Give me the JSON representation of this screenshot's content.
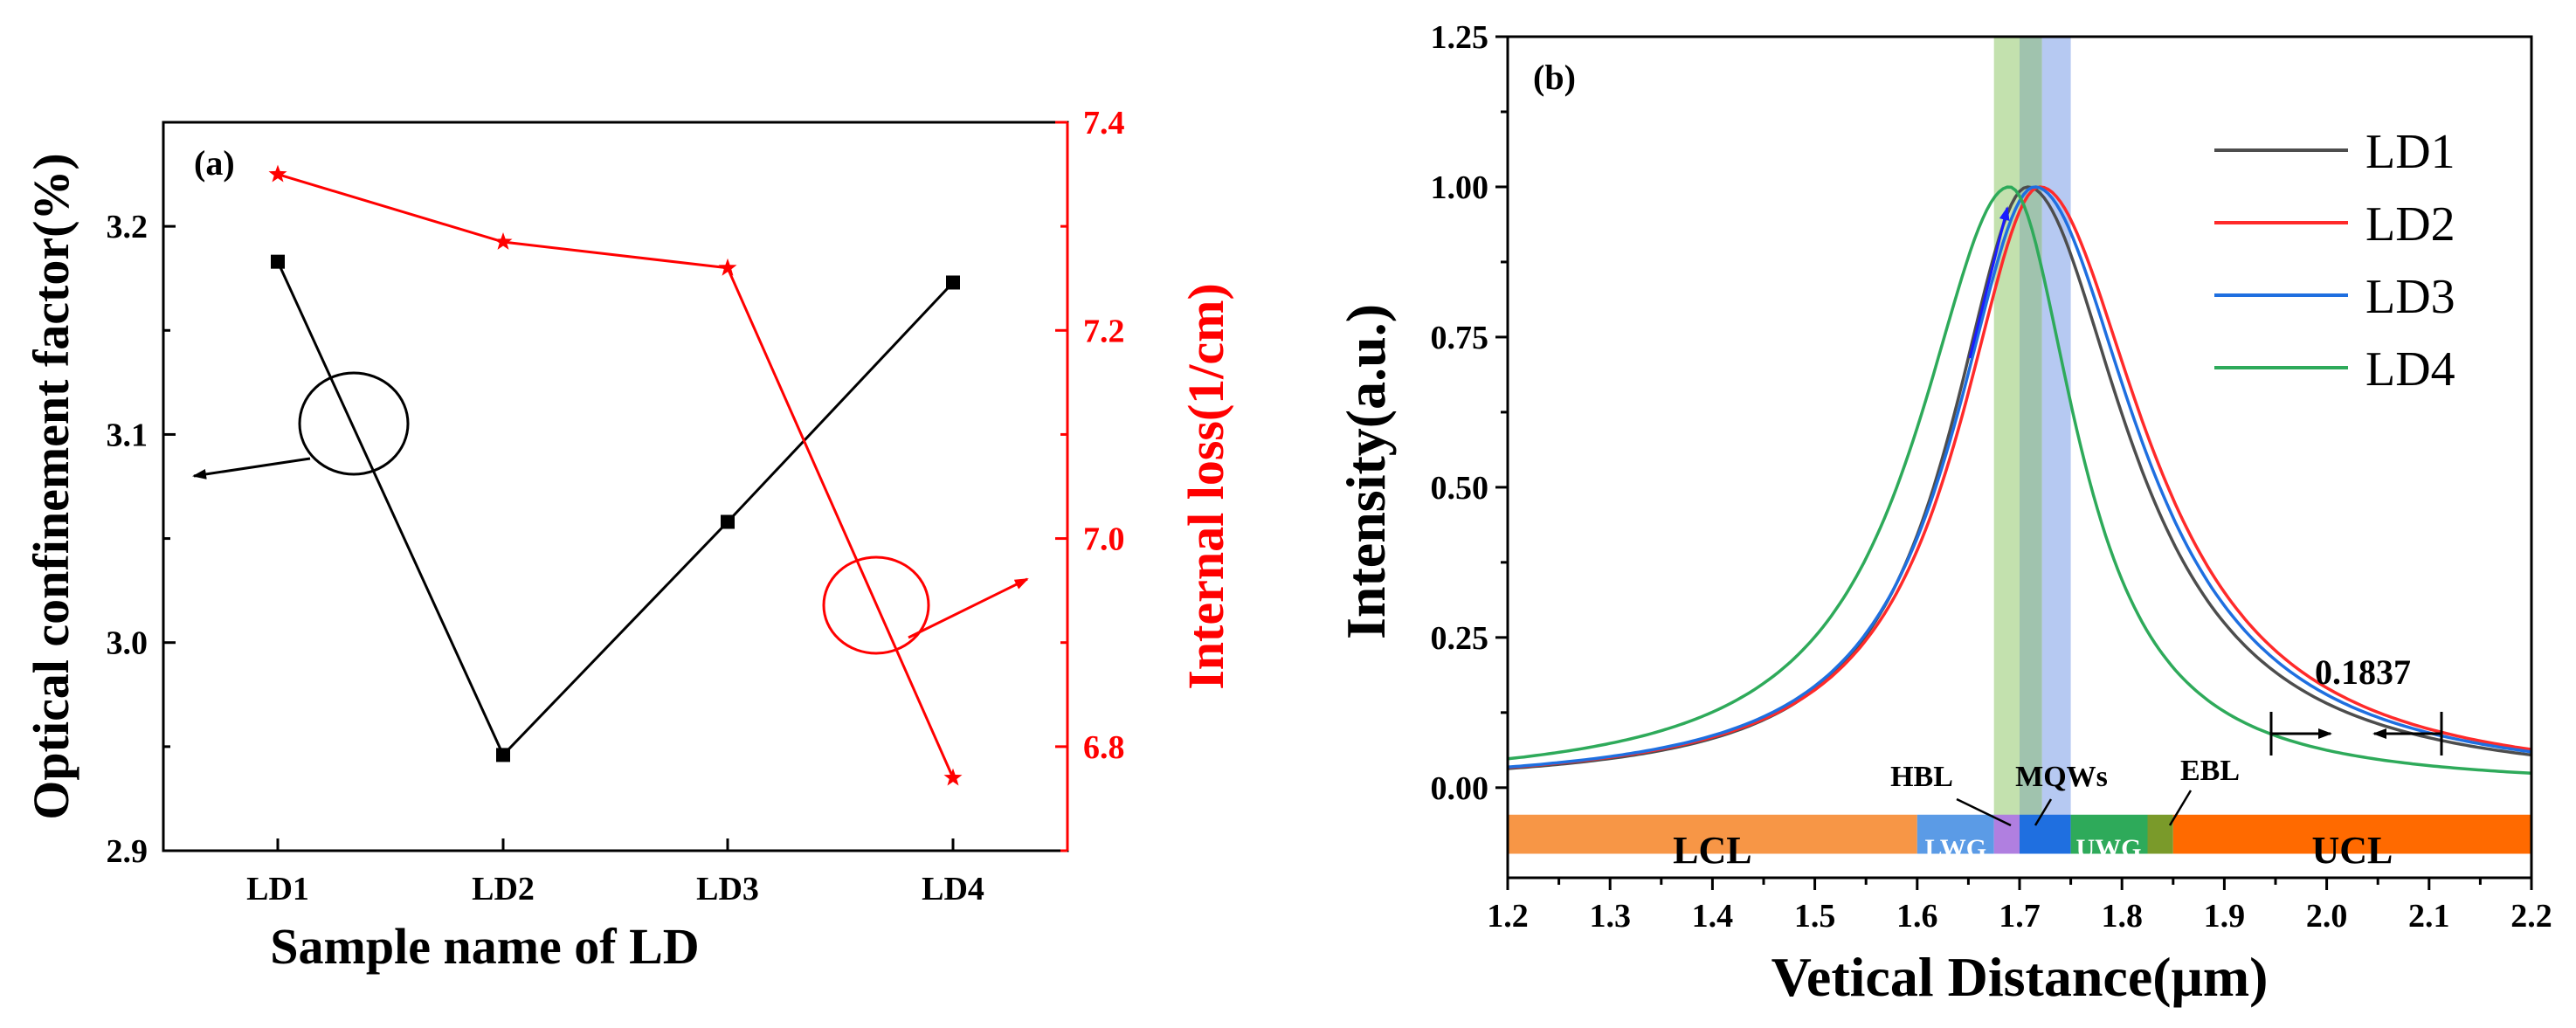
{
  "chart_data": [
    {
      "type": "line",
      "panel_label": "(a)",
      "categories": [
        "LD1",
        "LD2",
        "LD3",
        "LD4"
      ],
      "xlabel": "Sample name of LD",
      "ylabel_left": "Optical confinement factor(%)",
      "ylabel_right": "Internal loss(1/cm)",
      "ylim_left": [
        2.9,
        3.25
      ],
      "yticks_left": [
        "2.9",
        "3.0",
        "3.1",
        "3.2"
      ],
      "ylim_right": [
        6.7,
        7.4
      ],
      "yticks_right": [
        "6.8",
        "7.0",
        "7.2",
        "7.4"
      ],
      "series": [
        {
          "name": "Optical confinement factor",
          "axis": "left",
          "color": "#000000",
          "marker": "square",
          "values": [
            3.183,
            2.946,
            3.058,
            3.173
          ]
        },
        {
          "name": "Internal loss",
          "axis": "right",
          "color": "#ff0000",
          "marker": "star",
          "values": [
            7.35,
            7.285,
            7.26,
            6.77
          ]
        }
      ]
    },
    {
      "type": "line",
      "panel_label": "(b)",
      "xlabel": "Vetical Distance(μm)",
      "ylabel": "Intensity(a.u.)",
      "xlim": [
        1.2,
        2.2
      ],
      "ylim": [
        -0.15,
        1.25
      ],
      "xticks": [
        "1.2",
        "1.3",
        "1.4",
        "1.5",
        "1.6",
        "1.7",
        "1.8",
        "1.9",
        "2.0",
        "2.1",
        "2.2"
      ],
      "yticks": [
        "0.00",
        "0.25",
        "0.50",
        "0.75",
        "1.00",
        "1.25"
      ],
      "legend_position": "top-right",
      "series": [
        {
          "name": "LD1",
          "color": "#4d4d4d",
          "peak": 1.708,
          "left_width": 0.092,
          "right_width": 0.118
        },
        {
          "name": "LD2",
          "color": "#ff2a2a",
          "peak": 1.72,
          "left_width": 0.097,
          "right_width": 0.125
        },
        {
          "name": "LD3",
          "color": "#1f6fe0",
          "peak": 1.715,
          "left_width": 0.097,
          "right_width": 0.122
        },
        {
          "name": "LD4",
          "color": "#2eaa5a",
          "peak": 1.69,
          "left_width": 0.11,
          "right_width": 0.08
        }
      ],
      "layers": [
        {
          "name": "LCL",
          "start": 1.2,
          "end": 1.6,
          "color": "#f79646"
        },
        {
          "name": "LWG",
          "start": 1.6,
          "end": 1.675,
          "color": "#5b9be6"
        },
        {
          "name": "HBL",
          "start": 1.675,
          "end": 1.7,
          "color": "#b07fe0"
        },
        {
          "name": "MQWs",
          "start": 1.7,
          "end": 1.75,
          "color": "#1f6fe0"
        },
        {
          "name": "UWG",
          "start": 1.75,
          "end": 1.825,
          "color": "#2eaa5a"
        },
        {
          "name": "EBL",
          "start": 1.825,
          "end": 1.85,
          "color": "#7a9a2a"
        },
        {
          "name": "UCL",
          "start": 1.85,
          "end": 2.2,
          "color": "#ff6a00"
        }
      ],
      "annotation_value": "0.1837",
      "highlight_bands": [
        {
          "start": 1.675,
          "end": 1.7,
          "color": "#b9dca0"
        },
        {
          "start": 1.7,
          "end": 1.722,
          "color": "#8fb8a0"
        },
        {
          "start": 1.722,
          "end": 1.75,
          "color": "#a9bff0"
        }
      ]
    }
  ]
}
